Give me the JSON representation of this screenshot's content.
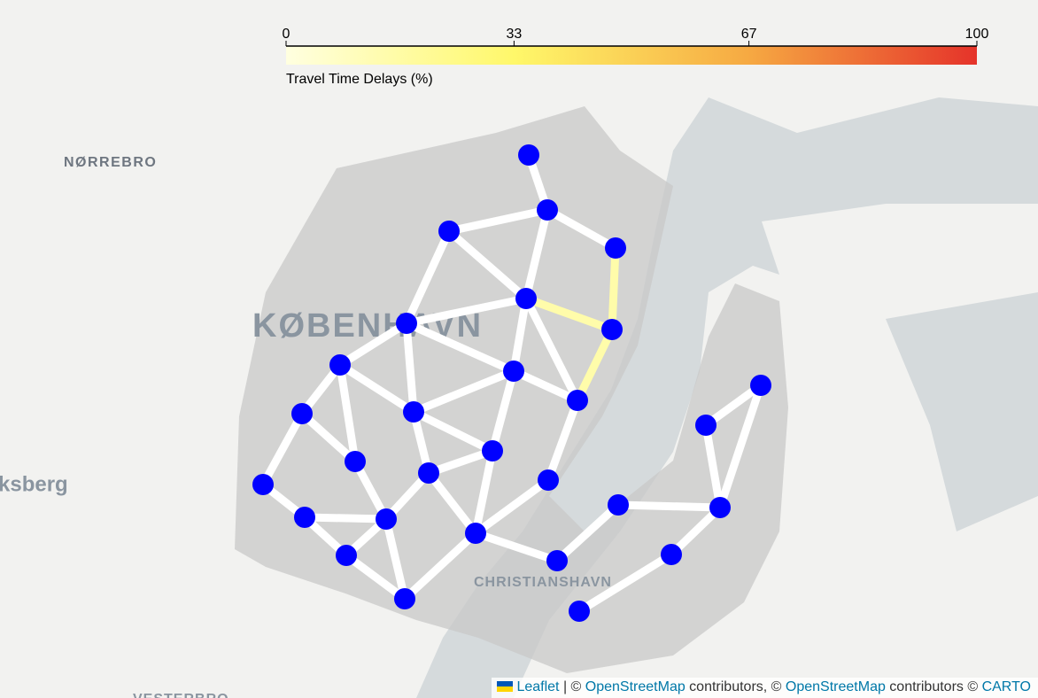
{
  "colorbar": {
    "title": "Travel Time Delays (%)",
    "range": [
      0,
      100
    ],
    "ticks": [
      0,
      33,
      67,
      100
    ]
  },
  "map_labels": [
    "NØRREBRO",
    "KØBENHAVN",
    "ksberg",
    "CHRISTIANSHAVN",
    "VESTERBRO"
  ],
  "network": {
    "node_color": "#0000ff",
    "edge_color": "#ffffff",
    "edge_delays": [
      0,
      0,
      0,
      0,
      0,
      0,
      15,
      15,
      0,
      0,
      0,
      0,
      0,
      0,
      15,
      0,
      0,
      0,
      0,
      0,
      0,
      0,
      0,
      0,
      0,
      0,
      0,
      0,
      0,
      0,
      0,
      0,
      0,
      0,
      0,
      0,
      0,
      0,
      0,
      0,
      0,
      0,
      0,
      0,
      0,
      0,
      0
    ]
  },
  "attribution": [
    "Leaflet",
    " | © ",
    "OpenStreetMap",
    " contributors, © ",
    "OpenStreetMap",
    " contributors © ",
    "CARTO"
  ]
}
